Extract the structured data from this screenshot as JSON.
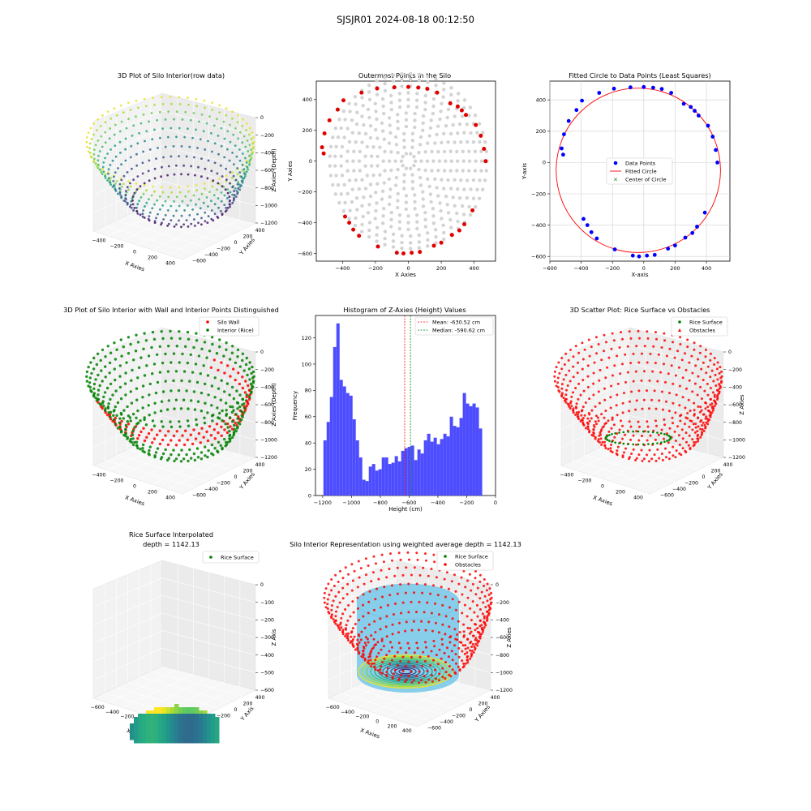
{
  "suptitle": "SJSJR01 2024-08-18 00:12:50",
  "chart_data": [
    {
      "id": "raw3d",
      "type": "scatter",
      "projection": "3d",
      "title": "3D Plot of Silo Interior(row data)",
      "xlabel": "X Axies",
      "ylabel": "Y Axies",
      "zlabel": "Z Axies (Depth)",
      "xticks": [
        "−400",
        "−200",
        "0",
        "200",
        "400"
      ],
      "yticks": [
        "400",
        "200",
        "0",
        "−200",
        "−400",
        "−600"
      ],
      "zticks": [
        "0",
        "−200",
        "−400",
        "−600",
        "−800",
        "−1000",
        "−1200"
      ],
      "zlim": [
        -1250,
        0
      ],
      "colormap": "viridis",
      "rings": [
        {
          "r": 430,
          "z": -230,
          "n": 60
        },
        {
          "r": 420,
          "z": -330,
          "n": 60
        },
        {
          "r": 405,
          "z": -430,
          "n": 58
        },
        {
          "r": 390,
          "z": -530,
          "n": 56
        },
        {
          "r": 370,
          "z": -640,
          "n": 54
        },
        {
          "r": 350,
          "z": -750,
          "n": 52
        },
        {
          "r": 330,
          "z": -870,
          "n": 50
        },
        {
          "r": 305,
          "z": -990,
          "n": 48
        },
        {
          "r": 280,
          "z": -1100,
          "n": 46
        },
        {
          "r": 250,
          "z": -1190,
          "n": 44
        }
      ]
    },
    {
      "id": "outer",
      "type": "scatter",
      "title": "Outermost Points in the Silo",
      "xlabel": "X Axies",
      "ylabel": "Y Axies",
      "xlim": [
        -560,
        530
      ],
      "ylim": [
        -650,
        520
      ],
      "xticks": [
        -400,
        -200,
        0,
        200,
        400
      ],
      "yticks": [
        400,
        200,
        0,
        -200,
        -400,
        -600
      ],
      "tick_labels_x": [
        "−400",
        "−200",
        "0",
        "200",
        "400"
      ],
      "tick_labels_y": [
        "400",
        "200",
        "0",
        "−200",
        "−400",
        "−600"
      ],
      "grey_color": "#d3d3d3",
      "outer_color": "#e00000",
      "grey_rings": [
        40,
        75,
        110,
        145,
        180,
        215,
        250,
        285,
        320,
        355,
        390,
        425,
        455
      ],
      "outer_points": [
        [
          -525,
          90
        ],
        [
          -515,
          50
        ],
        [
          -510,
          180
        ],
        [
          -480,
          265
        ],
        [
          -430,
          335
        ],
        [
          -395,
          395
        ],
        [
          -285,
          445
        ],
        [
          -190,
          472
        ],
        [
          -85,
          480
        ],
        [
          0,
          482
        ],
        [
          60,
          478
        ],
        [
          115,
          470
        ],
        [
          175,
          445
        ],
        [
          255,
          375
        ],
        [
          300,
          355
        ],
        [
          325,
          330
        ],
        [
          350,
          300
        ],
        [
          410,
          235
        ],
        [
          440,
          165
        ],
        [
          460,
          80
        ],
        [
          470,
          0
        ],
        [
          390,
          -320
        ],
        [
          340,
          -410
        ],
        [
          310,
          -450
        ],
        [
          265,
          -480
        ],
        [
          200,
          -530
        ],
        [
          155,
          -550
        ],
        [
          70,
          -590
        ],
        [
          20,
          -595
        ],
        [
          -30,
          -600
        ],
        [
          -70,
          -595
        ],
        [
          -185,
          -555
        ],
        [
          -300,
          -485
        ],
        [
          -335,
          -445
        ],
        [
          -360,
          -400
        ],
        [
          -385,
          -360
        ]
      ]
    },
    {
      "id": "fit",
      "type": "scatter",
      "title": "Fitted Circle to Data Points (Least Squares)",
      "xlabel": "X-axis",
      "ylabel": "Y-axis",
      "xlim": [
        -600,
        550
      ],
      "ylim": [
        -630,
        520
      ],
      "xticks": [
        -600,
        -400,
        -200,
        0,
        200,
        400
      ],
      "yticks": [
        400,
        200,
        0,
        -200,
        -400,
        -600
      ],
      "tick_labels_x": [
        "−600",
        "−400",
        "−200",
        "0",
        "200",
        "400"
      ],
      "tick_labels_y": [
        "400",
        "200",
        "0",
        "−200",
        "−400",
        "−600"
      ],
      "grid": true,
      "circle": {
        "cx": -35,
        "cy": -50,
        "r": 525
      },
      "legend": [
        "Data Points",
        "Fitted Circle",
        "Center of Circle"
      ],
      "legend_position": "center"
    },
    {
      "id": "wall3d",
      "type": "scatter",
      "projection": "3d",
      "title": "3D Plot of Silo Interior with Wall and Interior Points Distinguished",
      "xlabel": "X Axies",
      "ylabel": "Y Axies",
      "zlabel": "Z Axies (Depth)",
      "xticks": [
        "−400",
        "−200",
        "0",
        "200",
        "400"
      ],
      "yticks": [
        "400",
        "200",
        "0",
        "−200",
        "−400",
        "−600"
      ],
      "zticks": [
        "0",
        "−200",
        "−400",
        "−600",
        "−800",
        "−1000",
        "−1200"
      ],
      "legend": [
        "Silo Wall",
        "Interior (Rice)"
      ],
      "legend_position": "top-right",
      "colors": {
        "wall": "#ff0000",
        "interior": "#008000"
      }
    },
    {
      "id": "hist",
      "type": "bar",
      "title": "Histogram of Z-Axies (Height) Values",
      "xlabel": "Height (cm)",
      "ylabel": "Frequency",
      "xlim": [
        -1250,
        0
      ],
      "ylim": [
        0,
        137
      ],
      "xticks": [
        -1200,
        -1000,
        -800,
        -600,
        -400,
        -200,
        0
      ],
      "tick_labels_x": [
        "−1200",
        "−1000",
        "−800",
        "−600",
        "−400",
        "−200",
        "0"
      ],
      "yticks": [
        0,
        20,
        40,
        60,
        80,
        100,
        120
      ],
      "bin_start": -1195,
      "bin_width": 22.5,
      "values": [
        42,
        56,
        75,
        113,
        131,
        88,
        83,
        78,
        76,
        58,
        42,
        29,
        12,
        11,
        22,
        24,
        19,
        20,
        29,
        29,
        24,
        25,
        30,
        26,
        34,
        36,
        37,
        38,
        27,
        35,
        32,
        42,
        47,
        41,
        44,
        39,
        43,
        47,
        45,
        60,
        53,
        52,
        59,
        78,
        70,
        68,
        70,
        67,
        51
      ],
      "bar_color": "#4d4dff",
      "mean": -630.52,
      "median": -590.62,
      "legend": [
        "Mean: -630.52 cm",
        "Median: -590.62 cm"
      ]
    },
    {
      "id": "rice3d",
      "type": "scatter",
      "projection": "3d",
      "title": "3D Scatter Plot: Rice Surface vs Obstacles",
      "xlabel": "X Axies",
      "ylabel": "Y Axies",
      "zlabel": "Z Axies",
      "xticks": [
        "−400",
        "−200",
        "0",
        "200",
        "400"
      ],
      "yticks": [
        "400",
        "200",
        "0",
        "−200",
        "−400",
        "−600"
      ],
      "zticks": [
        "0",
        "−200",
        "−400",
        "−600",
        "−800",
        "−1000",
        "−1200"
      ],
      "legend": [
        "Rice Surface",
        "Obstacles"
      ],
      "legend_position": "top-right"
    },
    {
      "id": "interp3d",
      "type": "scatter",
      "projection": "3d",
      "title": "Rice Surface Interpolated",
      "subtitle": "depth = 1142.13",
      "xlabel": "X Axis",
      "ylabel": "Y Axis",
      "zlabel": "Z Axis",
      "xticks": [
        "−600",
        "−400",
        "−200",
        "0",
        "200",
        "400"
      ],
      "yticks": [
        "400",
        "200",
        "0",
        "−200",
        "−400",
        "−600"
      ],
      "zticks": [
        "0",
        "−100",
        "−200",
        "−300",
        "−400",
        "−500",
        "−600"
      ],
      "legend": [
        "Rice Surface"
      ],
      "legend_position": "top-right"
    },
    {
      "id": "weighted3d",
      "type": "scatter",
      "projection": "3d",
      "title": "Silo Interior Representation using weighted average depth = 1142.13",
      "xlabel": "X Axies",
      "ylabel": "Y Axies",
      "zlabel": "Z Axies",
      "xticks": [
        "−600",
        "−400",
        "−200",
        "0",
        "200",
        "400"
      ],
      "yticks": [
        "400",
        "200",
        "0",
        "−200",
        "−400",
        "−600"
      ],
      "zticks": [
        "0",
        "−200",
        "−400",
        "−600",
        "−800",
        "−1000",
        "−1200"
      ],
      "legend": [
        "Rice Surface",
        "Obstacles"
      ],
      "legend_position": "top-center",
      "cylinder_color": "#87ceeb"
    }
  ]
}
